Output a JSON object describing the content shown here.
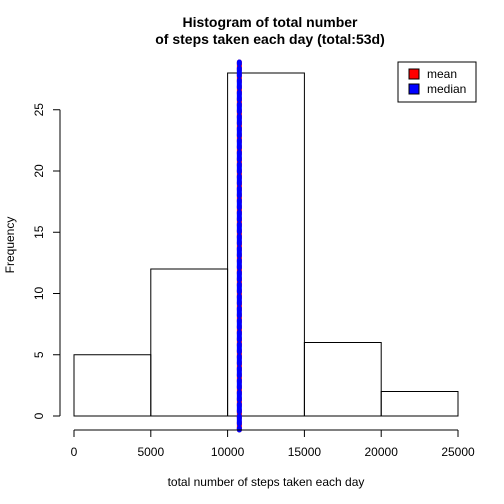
{
  "chart_data": {
    "type": "bar",
    "title_lines": [
      "Histogram of total number",
      "of steps taken each day (total:53d)"
    ],
    "xlabel": "total number of steps taken each day",
    "ylabel": "Frequency",
    "bins": [
      {
        "start": 0,
        "end": 5000,
        "count": 5
      },
      {
        "start": 5000,
        "end": 10000,
        "count": 12
      },
      {
        "start": 10000,
        "end": 15000,
        "count": 28
      },
      {
        "start": 15000,
        "end": 20000,
        "count": 6
      },
      {
        "start": 20000,
        "end": 25000,
        "count": 2
      }
    ],
    "x_ticks": [
      0,
      5000,
      10000,
      15000,
      20000,
      25000
    ],
    "y_ticks": [
      0,
      5,
      10,
      15,
      20,
      25
    ],
    "xlim": [
      0,
      25000
    ],
    "ylim": [
      0,
      28
    ],
    "reference_lines": [
      {
        "name": "mean",
        "value": 10766.19,
        "color": "#ff0000"
      },
      {
        "name": "median",
        "value": 10765,
        "color": "#0000ff"
      }
    ],
    "legend": {
      "position": "top-right",
      "items": [
        {
          "label": "mean",
          "color": "#ff0000"
        },
        {
          "label": "median",
          "color": "#0000ff"
        }
      ]
    },
    "grid": false
  }
}
